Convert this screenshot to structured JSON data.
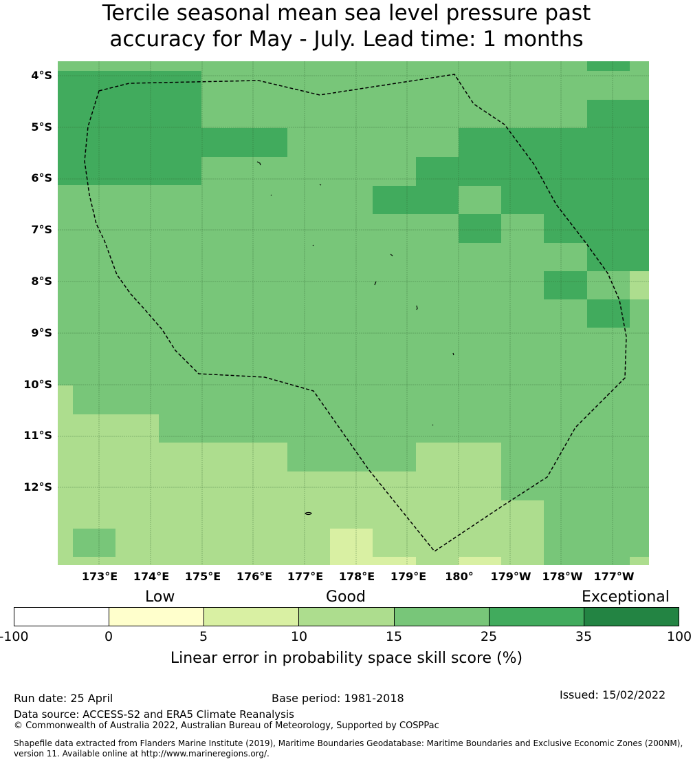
{
  "title_line1": "Tercile seasonal mean sea level pressure past",
  "title_line2": "accuracy for May - July. Lead time: 1 months",
  "colors": {
    "c_0_5": "#ffffcc",
    "c_5_10": "#d9f0a3",
    "c_10_15": "#addd8e",
    "c_15_25": "#78c679",
    "c_25_35": "#41ab5d",
    "c_35_100": "#238443",
    "c_neg": "#ffffff",
    "land": "#000000",
    "gridline": "#2f5f2f"
  },
  "map": {
    "lat_labels": [
      "4°S",
      "5°S",
      "6°S",
      "7°S",
      "8°S",
      "9°S",
      "10°S",
      "11°S",
      "12°S"
    ],
    "lon_labels": [
      "173°E",
      "174°E",
      "175°E",
      "176°E",
      "177°E",
      "178°E",
      "179°E",
      "180°",
      "179°W",
      "178°W",
      "177°W"
    ],
    "boundary_style": "dashed-black",
    "grid": "on"
  },
  "legend": {
    "categories": [
      "Low",
      "Good",
      "Exceptional"
    ],
    "ticks": [
      "-100",
      "0",
      "5",
      "10",
      "15",
      "25",
      "35",
      "100"
    ],
    "title": "Linear error in probability space skill score (%)"
  },
  "footer": {
    "run_date": "Run date: 25 April",
    "base_period": "Base period: 1981-2018",
    "issued": "Issued: 15/02/2022",
    "data_source": "Data source: ACCESS-S2 and ERA5 Climate Reanalysis",
    "copyright": "© Commonwealth of Australia 2022, Australian Bureau of Meteorology, Supported by COSPPac",
    "shapefile_line1": "Shapefile data extracted from Flanders Marine Institute (2019), Maritime Boundaries Geodatabase: Maritime Boundaries and Exclusive Economic Zones (200NM),",
    "shapefile_line2": "version 11. Available online at http://www.marineregions.org/."
  }
}
